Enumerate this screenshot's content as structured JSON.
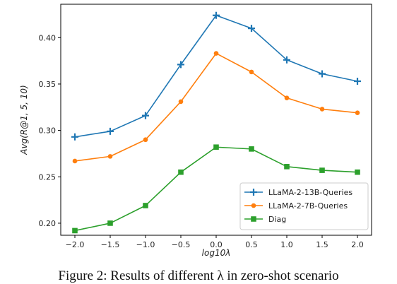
{
  "chart_data": {
    "type": "line",
    "title": "",
    "xlabel": "log10λ",
    "ylabel": "Avg(R@1, 5, 10)",
    "x": [
      -2.0,
      -1.5,
      -1.0,
      -0.5,
      0.0,
      0.5,
      1.0,
      1.5,
      2.0
    ],
    "xticks": [
      "−2.0",
      "−1.5",
      "−1.0",
      "−0.5",
      "0.0",
      "0.5",
      "1.0",
      "1.5",
      "2.0"
    ],
    "yticks": [
      "0.20",
      "0.25",
      "0.30",
      "0.35",
      "0.40"
    ],
    "ytick_values": [
      0.2,
      0.25,
      0.3,
      0.35,
      0.4
    ],
    "xlim": [
      -2.2,
      2.2
    ],
    "ylim": [
      0.187,
      0.436
    ],
    "grid": false,
    "legend_position": "lower-right",
    "series": [
      {
        "name": "LLaMA-2-13B-Queries",
        "color": "#1f77b4",
        "marker": "plus",
        "values": [
          0.293,
          0.299,
          0.316,
          0.371,
          0.424,
          0.41,
          0.376,
          0.361,
          0.353
        ]
      },
      {
        "name": "LLaMA-2-7B-Queries",
        "color": "#ff7f0e",
        "marker": "circle",
        "values": [
          0.267,
          0.272,
          0.29,
          0.331,
          0.383,
          0.363,
          0.335,
          0.323,
          0.319
        ]
      },
      {
        "name": "Diag",
        "color": "#2ca02c",
        "marker": "square",
        "values": [
          0.192,
          0.2,
          0.219,
          0.255,
          0.282,
          0.28,
          0.261,
          0.257,
          0.255
        ]
      }
    ]
  },
  "caption": "Figure 2: Results of different λ in zero-shot scenario"
}
